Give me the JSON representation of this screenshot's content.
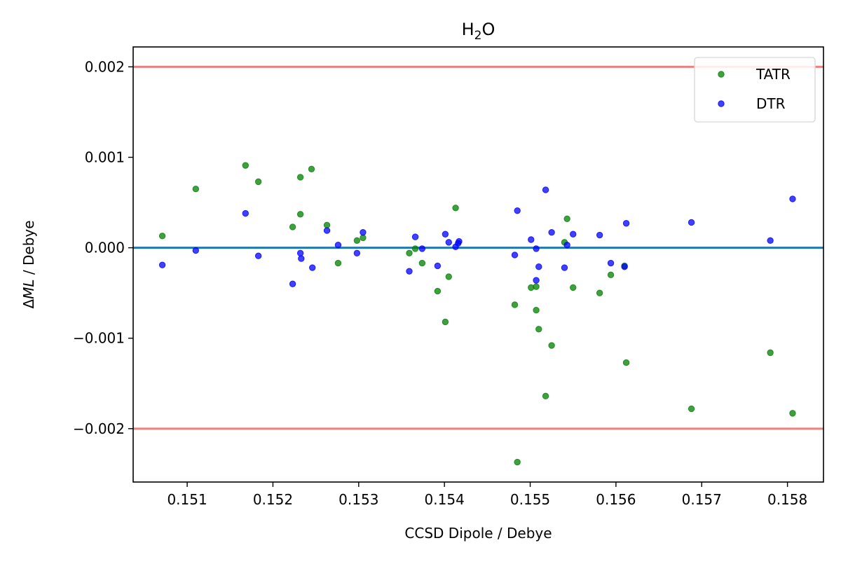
{
  "chart_data": {
    "type": "scatter",
    "title": "H₂O",
    "title_parts": {
      "base": "H",
      "sub": "2",
      "rest": "O"
    },
    "xlabel": "CCSD Dipole / Debye",
    "ylabel_parts": {
      "delta": "Δ",
      "italic": "ML",
      "rest": " / Debye"
    },
    "xlim": [
      0.15037,
      0.15842
    ],
    "ylim": [
      -0.00259,
      0.00222
    ],
    "xticks": [
      0.151,
      0.152,
      0.153,
      0.154,
      0.155,
      0.156,
      0.157,
      0.158
    ],
    "xtick_labels": [
      "0.151",
      "0.152",
      "0.153",
      "0.154",
      "0.155",
      "0.156",
      "0.157",
      "0.158"
    ],
    "yticks": [
      -0.002,
      -0.001,
      0.0,
      0.001,
      0.002
    ],
    "ytick_labels": [
      "−0.002",
      "−0.001",
      "0.000",
      "0.001",
      "0.002"
    ],
    "grid": false,
    "legend_position": "top-right",
    "reference_lines": [
      {
        "y": 0.002,
        "color": "#f08080"
      },
      {
        "y": 0.0,
        "color": "#1f77b4"
      },
      {
        "y": -0.002,
        "color": "#f08080"
      }
    ],
    "series": [
      {
        "name": "TATR",
        "color": "#008000",
        "points": [
          [
            0.15071,
            0.00013
          ],
          [
            0.1511,
            0.00065
          ],
          [
            0.15168,
            0.00091
          ],
          [
            0.15183,
            0.00073
          ],
          [
            0.15223,
            0.00023
          ],
          [
            0.15232,
            0.00037
          ],
          [
            0.15232,
            0.00078
          ],
          [
            0.15245,
            0.00087
          ],
          [
            0.15263,
            0.00025
          ],
          [
            0.15276,
            -0.00017
          ],
          [
            0.15298,
            8e-05
          ],
          [
            0.15305,
            0.00011
          ],
          [
            0.15359,
            -6e-05
          ],
          [
            0.15366,
            -1e-05
          ],
          [
            0.15374,
            -0.00017
          ],
          [
            0.15392,
            -0.00048
          ],
          [
            0.15401,
            -0.00082
          ],
          [
            0.15405,
            -0.00032
          ],
          [
            0.15413,
            0.00044
          ],
          [
            0.15482,
            -0.00063
          ],
          [
            0.15485,
            -0.00237
          ],
          [
            0.15501,
            -0.00044
          ],
          [
            0.15507,
            -0.00043
          ],
          [
            0.15507,
            -0.00069
          ],
          [
            0.1551,
            -0.0009
          ],
          [
            0.15518,
            -0.00164
          ],
          [
            0.15525,
            -0.00108
          ],
          [
            0.1554,
            6e-05
          ],
          [
            0.15543,
            0.00032
          ],
          [
            0.1555,
            -0.00044
          ],
          [
            0.15581,
            -0.0005
          ],
          [
            0.15594,
            -0.0003
          ],
          [
            0.1561,
            -0.0002
          ],
          [
            0.15612,
            -0.00127
          ],
          [
            0.15688,
            -0.00178
          ],
          [
            0.1578,
            -0.00116
          ],
          [
            0.15806,
            -0.00183
          ]
        ]
      },
      {
        "name": "DTR",
        "color": "#0000ff",
        "points": [
          [
            0.15071,
            -0.00019
          ],
          [
            0.1511,
            -3e-05
          ],
          [
            0.15168,
            0.00038
          ],
          [
            0.15183,
            -9e-05
          ],
          [
            0.15223,
            -0.0004
          ],
          [
            0.15232,
            -6e-05
          ],
          [
            0.15233,
            -0.00012
          ],
          [
            0.15246,
            -0.00022
          ],
          [
            0.15263,
            0.00019
          ],
          [
            0.15276,
            3e-05
          ],
          [
            0.15298,
            -6e-05
          ],
          [
            0.15305,
            0.00017
          ],
          [
            0.15359,
            -0.00026
          ],
          [
            0.15366,
            0.00012
          ],
          [
            0.15374,
            -1e-05
          ],
          [
            0.15392,
            -0.0002
          ],
          [
            0.15401,
            0.00015
          ],
          [
            0.15405,
            6e-05
          ],
          [
            0.15413,
            1e-05
          ],
          [
            0.15416,
            5e-05
          ],
          [
            0.15417,
            7e-05
          ],
          [
            0.15482,
            -8e-05
          ],
          [
            0.15485,
            0.00041
          ],
          [
            0.15501,
            9e-05
          ],
          [
            0.15507,
            -1e-05
          ],
          [
            0.15507,
            -0.00036
          ],
          [
            0.1551,
            -0.00021
          ],
          [
            0.15518,
            0.00064
          ],
          [
            0.15525,
            0.00017
          ],
          [
            0.1554,
            -0.00022
          ],
          [
            0.15543,
            3e-05
          ],
          [
            0.1555,
            0.00015
          ],
          [
            0.15581,
            0.00014
          ],
          [
            0.15594,
            -0.00017
          ],
          [
            0.1561,
            -0.00021
          ],
          [
            0.15612,
            0.00027
          ],
          [
            0.15688,
            0.00028
          ],
          [
            0.1578,
            8e-05
          ],
          [
            0.15806,
            0.00054
          ]
        ]
      }
    ]
  }
}
